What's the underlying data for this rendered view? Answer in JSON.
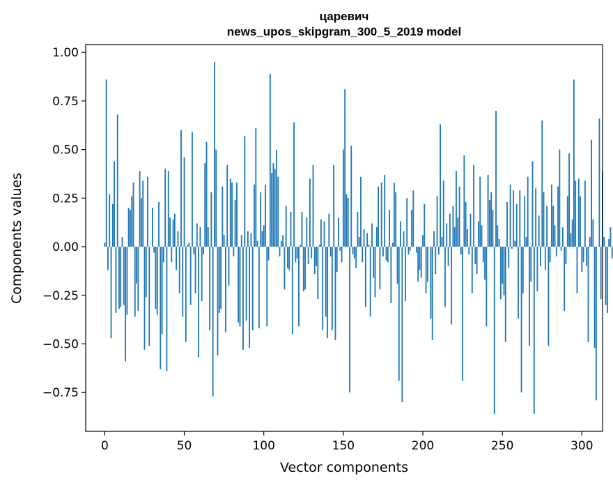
{
  "chart_data": {
    "type": "bar",
    "title": "царевич",
    "subtitle": "news_upos_skipgram_300_5_2019 model",
    "xlabel": "Vector components",
    "ylabel": "Components values",
    "xlim": [
      -12,
      313
    ],
    "ylim": [
      -0.95,
      1.04
    ],
    "xticks": [
      0,
      50,
      100,
      150,
      200,
      250,
      300
    ],
    "xtick_labels": [
      "0",
      "50",
      "100",
      "150",
      "200",
      "250",
      "300"
    ],
    "yticks": [
      1.0,
      0.75,
      0.5,
      0.25,
      0.0,
      -0.25,
      -0.5,
      -0.75
    ],
    "ytick_labels": [
      "1.00",
      "0.75",
      "0.50",
      "0.25",
      "0.00",
      "−0.25",
      "−0.50",
      "−0.75"
    ],
    "bar_color": "#1f77b4",
    "grid": false,
    "values": [
      0.02,
      0.86,
      -0.12,
      0.27,
      -0.47,
      0.22,
      0.44,
      -0.34,
      0.68,
      -0.32,
      -0.31,
      0.05,
      -0.3,
      -0.59,
      -0.35,
      0.2,
      0.19,
      0.26,
      0.33,
      -0.36,
      -0.19,
      -0.33,
      0.39,
      0.25,
      0.34,
      -0.53,
      -0.26,
      0.36,
      -0.51,
      0.0,
      0.2,
      -0.03,
      -0.32,
      -0.35,
      0.23,
      -0.63,
      -0.45,
      -0.08,
      0.4,
      -0.64,
      0.39,
      0.15,
      -0.08,
      0.14,
      0.17,
      -0.12,
      0.08,
      -0.24,
      0.6,
      -0.36,
      0.46,
      -0.49,
      0.01,
      0.02,
      -0.3,
      0.59,
      -0.04,
      -0.24,
      0.12,
      -0.57,
      0.1,
      -0.28,
      -0.04,
      0.43,
      0.54,
      0.1,
      -0.43,
      0.28,
      -0.77,
      0.95,
      0.5,
      -0.56,
      -0.34,
      -0.32,
      0.31,
      0.06,
      -0.44,
      0.42,
      -0.2,
      0.35,
      0.33,
      -0.05,
      0.24,
      0.33,
      -0.39,
      -0.41,
      0.06,
      -0.53,
      0.57,
      -0.38,
      0.08,
      -0.52,
      0.07,
      -0.43,
      0.32,
      0.61,
      0.03,
      -0.42,
      0.28,
      0.08,
      0.11,
      0.32,
      -0.41,
      -0.07,
      0.89,
      0.38,
      0.43,
      0.4,
      0.5,
      0.36,
      -0.05,
      0.03,
      0.06,
      -0.22,
      0.21,
      -0.11,
      -0.12,
      0.18,
      -0.45,
      0.64,
      -0.08,
      -0.06,
      -0.41,
      0.01,
      0.18,
      -0.23,
      -0.22,
      0.15,
      -0.09,
      0.35,
      -0.06,
      0.42,
      -0.14,
      -0.1,
      -0.27,
      0.01,
      0.14,
      -0.43,
      0.13,
      -0.36,
      -0.47,
      0.17,
      -0.05,
      -0.43,
      0.42,
      -0.48,
      -0.13,
      0.15,
      -0.02,
      -0.08,
      0.5,
      0.81,
      0.27,
      0.25,
      -0.75,
      0.52,
      -0.04,
      -0.06,
      -0.11,
      0.18,
      0.05,
      0.36,
      -0.08,
      0.09,
      -0.31,
      0.07,
      0.01,
      -0.36,
      0.12,
      -0.16,
      -0.26,
      0.1,
      0.31,
      -0.22,
      0.33,
      -0.05,
      0.37,
      -0.07,
      -0.08,
      0.19,
      -0.29,
      0.02,
      0.33,
      0.28,
      -0.19,
      -0.69,
      0.13,
      -0.8,
      0.08,
      -0.28,
      0.25,
      -0.04,
      -0.02,
      0.19,
      0.29,
      0.0,
      -0.03,
      -0.18,
      -0.12,
      -0.16,
      0.06,
      0.22,
      -0.24,
      -0.18,
      0.0,
      -0.37,
      -0.48,
      0.08,
      -0.14,
      0.26,
      -0.04,
      0.63,
      0.05,
      0.34,
      -0.31,
      0.12,
      -0.1,
      0.17,
      -0.4,
      0.21,
      0.1,
      0.39,
      0.15,
      0.31,
      -0.04,
      -0.69,
      0.47,
      0.23,
      0.09,
      -0.04,
      0.17,
      -0.24,
      0.42,
      -0.09,
      -0.14,
      0.13,
      0.36,
      0.11,
      -0.08,
      -0.17,
      -0.41,
      0.37,
      0.24,
      0.28,
      0.19,
      -0.86,
      0.7,
      0.11,
      0.04,
      -0.27,
      -0.19,
      -0.25,
      -0.49,
      0.23,
      -0.11,
      0.32,
      -0.01,
      0.29,
      0.03,
      0.22,
      -0.37,
      0.29,
      -0.75,
      -0.24,
      0.26,
      0.05,
      0.36,
      -0.51,
      -0.18,
      0.44,
      -0.86,
      0.3,
      -0.23,
      0.16,
      -0.1,
      0.65,
      0.28,
      -0.12,
      0.21,
      -0.51,
      -0.08,
      0.32,
      0.21,
      0.11,
      -0.05,
      0.31,
      0.5,
      -0.02,
      0.1,
      -0.33,
      -0.09,
      0.26,
      0.48,
      0.07,
      0.14,
      0.86,
      0.34,
      -0.24,
      0.35,
      0.26,
      -0.13,
      -0.08,
      0.34,
      -0.1,
      -0.49,
      0.05,
      0.55,
      0.14,
      -0.52,
      -0.79,
      0.0,
      0.66,
      -0.27,
      0.39,
      0.05,
      -0.3,
      -0.34,
      0.04,
      0.1,
      -0.06
    ]
  }
}
